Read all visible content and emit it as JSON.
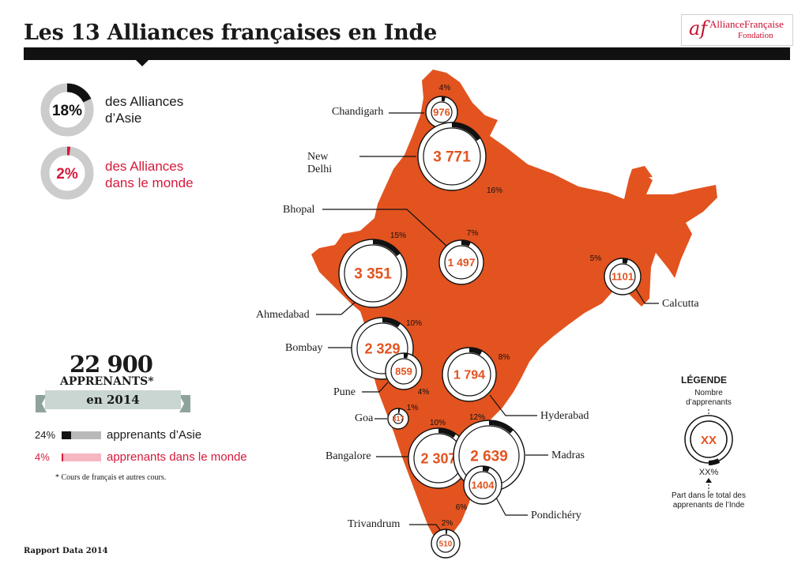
{
  "title": "Les 13 Alliances françaises en Inde",
  "logo": {
    "mark": "af",
    "name": "AllianceFrançaise",
    "sub": "Fondation"
  },
  "stats": [
    {
      "pct": 18,
      "pct_label": "18%",
      "line1": "des Alliances",
      "line2": "d’Asie",
      "color": "#111111"
    },
    {
      "pct": 2,
      "pct_label": "2%",
      "line1": "des Alliances",
      "line2": "dans le monde",
      "color": "#d7193b"
    }
  ],
  "total": {
    "number": "22 900",
    "label": "APPRENANTS*",
    "year": "en 2014"
  },
  "shares": [
    {
      "pct_label": "24%",
      "value": 24,
      "label": "apprenants d’Asie",
      "color": "#111111",
      "track": "#b9b9b9"
    },
    {
      "pct_label": "4%",
      "value": 4,
      "label": "apprenants dans le monde",
      "color": "#d7193b",
      "track": "#f6b7c3"
    }
  ],
  "footnote": "* Cours de français et autres cours.",
  "footer": "Rapport Data 2014",
  "legend": {
    "title": "LÉGENDE",
    "top_text": "Nombre d’apprenants",
    "sample_value": "XX",
    "sample_pct": "XX%",
    "bottom_text": "Part dans le total des apprenants de l’Inde"
  },
  "colors": {
    "map": "#e2531f",
    "number": "#e2531f",
    "accent_red": "#d7193b",
    "dark": "#111111"
  },
  "cities": [
    {
      "name": "Chandigarh",
      "learners": "976",
      "share": "4%",
      "share_value": 4
    },
    {
      "name": "New Delhi",
      "learners": "3 771",
      "share": "16%",
      "share_value": 16
    },
    {
      "name": "Bhopal",
      "learners": "1 497",
      "share": "7%",
      "share_value": 7
    },
    {
      "name": "Ahmedabad",
      "learners": "3 351",
      "share": "15%",
      "share_value": 15
    },
    {
      "name": "Calcutta",
      "learners": "1101",
      "share": "5%",
      "share_value": 5
    },
    {
      "name": "Bombay",
      "learners": "2 329",
      "share": "10%",
      "share_value": 10
    },
    {
      "name": "Pune",
      "learners": "859",
      "share": "4%",
      "share_value": 4
    },
    {
      "name": "Hyderabad",
      "learners": "1 794",
      "share": "8%",
      "share_value": 8
    },
    {
      "name": "Goa",
      "learners": "317",
      "share": "1%",
      "share_value": 1
    },
    {
      "name": "Bangalore",
      "learners": "2 307",
      "share": "10%",
      "share_value": 10
    },
    {
      "name": "Madras",
      "learners": "2 639",
      "share": "12%",
      "share_value": 12
    },
    {
      "name": "Pondichéry",
      "learners": "1404",
      "share": "6%",
      "share_value": 6
    },
    {
      "name": "Trivandrum",
      "learners": "510",
      "share": "2%",
      "share_value": 2
    }
  ]
}
